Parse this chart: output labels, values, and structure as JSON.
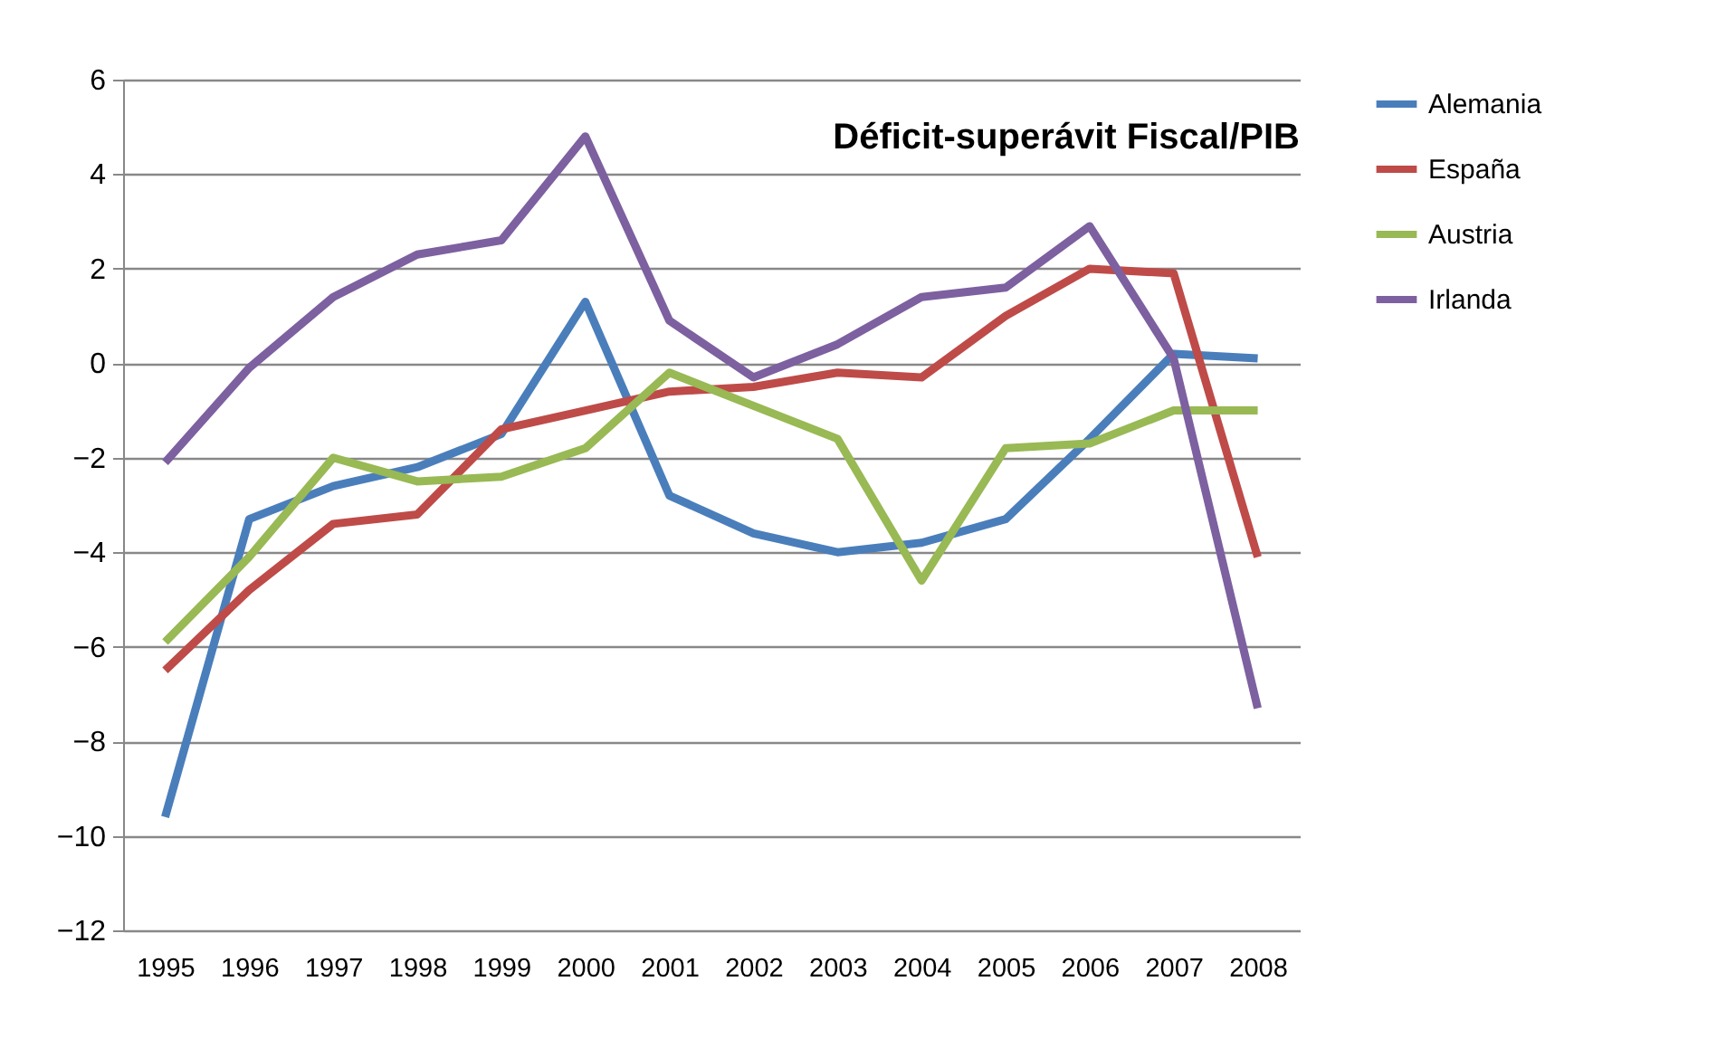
{
  "chart_data": {
    "type": "line",
    "title": "Déficit-superávit Fiscal/PIB",
    "categories": [
      "1995",
      "1996",
      "1997",
      "1998",
      "1999",
      "2000",
      "2001",
      "2002",
      "2003",
      "2004",
      "2005",
      "2006",
      "2007",
      "2008"
    ],
    "series": [
      {
        "name": "Alemania",
        "color": "#4a7ebb",
        "values": [
          -9.6,
          -3.3,
          -2.6,
          -2.2,
          -1.5,
          1.3,
          -2.8,
          -3.6,
          -4.0,
          -3.8,
          -3.3,
          -1.6,
          0.2,
          0.1
        ]
      },
      {
        "name": "España",
        "color": "#be4b48",
        "values": [
          -6.5,
          -4.8,
          -3.4,
          -3.2,
          -1.4,
          -1.0,
          -0.6,
          -0.5,
          -0.2,
          -0.3,
          1.0,
          2.0,
          1.9,
          -4.1
        ]
      },
      {
        "name": "Austria",
        "color": "#98b954",
        "values": [
          -5.9,
          -4.1,
          -2.0,
          -2.5,
          -2.4,
          -1.8,
          -0.2,
          -0.9,
          -1.6,
          -4.6,
          -1.8,
          -1.7,
          -1.0,
          -1.0
        ]
      },
      {
        "name": "Irlanda",
        "color": "#7d60a0",
        "values": [
          -2.1,
          -0.1,
          1.4,
          2.3,
          2.6,
          4.8,
          0.9,
          -0.3,
          0.4,
          1.4,
          1.6,
          2.9,
          0.1,
          -7.3
        ]
      }
    ],
    "ylim": [
      -12,
      6
    ],
    "yticks": [
      -12,
      -10,
      -8,
      -6,
      -4,
      -2,
      0,
      2,
      4,
      6
    ],
    "grid": "y",
    "legend": "right"
  }
}
